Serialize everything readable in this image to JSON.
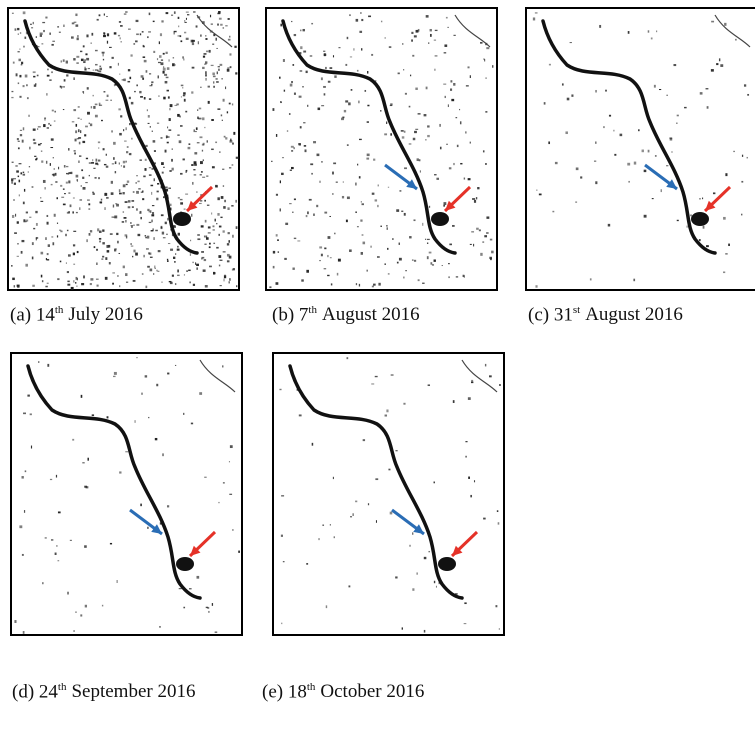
{
  "panels": [
    {
      "prefix": "(a) 14",
      "sup": "th",
      "suffix": "July 2016"
    },
    {
      "prefix": "(b) 7",
      "sup": "th",
      "suffix": "August 2016"
    },
    {
      "prefix": "(c) 31",
      "sup": "st",
      "suffix": "August 2016"
    },
    {
      "prefix": "(d) 24",
      "sup": "th",
      "suffix": "September 2016"
    },
    {
      "prefix": "(e) 18",
      "sup": "th",
      "suffix": "October 2016"
    }
  ]
}
